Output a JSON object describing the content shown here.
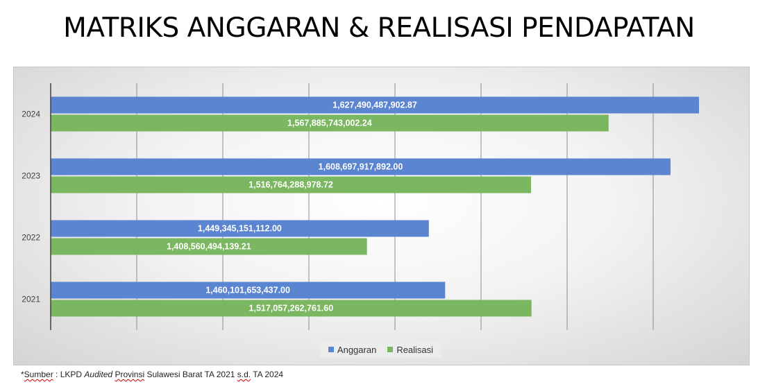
{
  "title": "MATRIKS ANGGARAN & REALISASI PENDAPATAN",
  "legend": {
    "anggaran": "Anggaran",
    "realisasi": "Realisasi"
  },
  "colors": {
    "anggaran": "#5b84d1",
    "realisasi": "#7bb661"
  },
  "source": {
    "prefix": "*",
    "sumber": "Sumber",
    "part1": " : LKPD ",
    "audited": "Audited",
    "part2": " ",
    "provinsi": "Provinsi",
    "part3": " Sulawesi Barat TA 2021 ",
    "sd": "s.d.",
    "part4": " TA 2024"
  },
  "chart_data": {
    "type": "bar",
    "orientation": "horizontal",
    "categories": [
      "2024",
      "2023",
      "2022",
      "2021"
    ],
    "series": [
      {
        "name": "Anggaran",
        "values": [
          1627490487902.87,
          1608697917892.0,
          1449345151112.0,
          1460101653437.0
        ],
        "labels": [
          "1,627,490,487,902.87",
          "1,608,697,917,892.00",
          "1,449,345,151,112.00",
          "1,460,101,653,437.00"
        ]
      },
      {
        "name": "Realisasi",
        "values": [
          1567885743002.24,
          1516764288978.72,
          1408560494139.21,
          1517057262761.6
        ],
        "labels": [
          "1,567,885,743,002.24",
          "1,516,764,288,978.72",
          "1,408,560,494,139.21",
          "1,517,057,262,761.60"
        ]
      }
    ],
    "grid": true,
    "legend_position": "bottom"
  }
}
